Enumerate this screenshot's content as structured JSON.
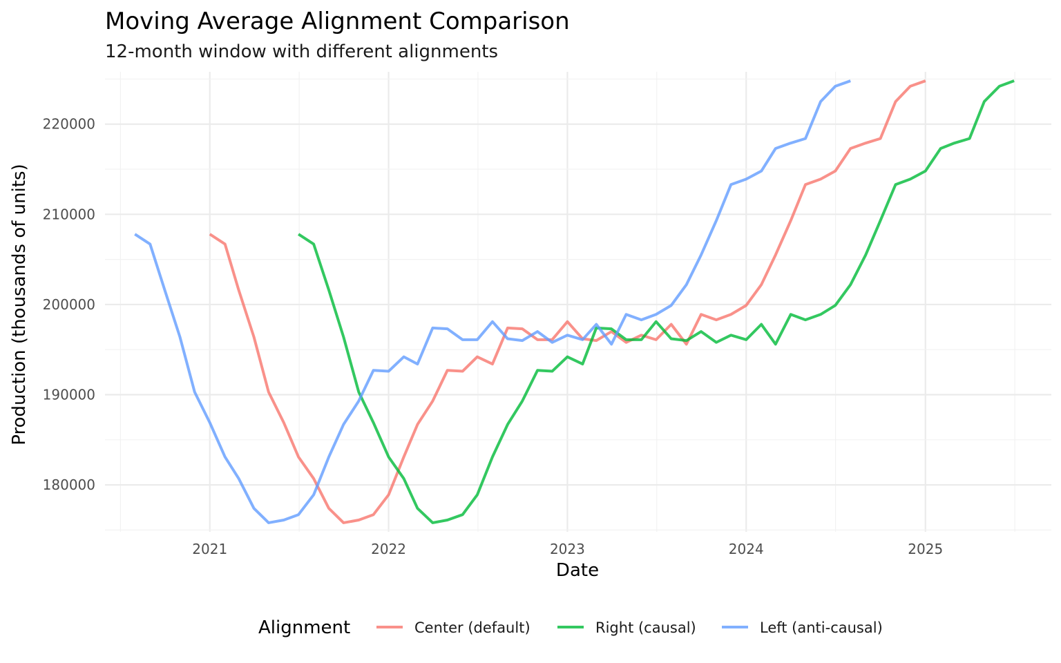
{
  "chart_data": {
    "type": "line",
    "title": "Moving Average Alignment Comparison",
    "subtitle": "12-month window with different alignments",
    "xlabel": "Date",
    "ylabel": "Production (thousands of units)",
    "xlim": [
      "2020-06-01",
      "2025-09-15"
    ],
    "ylim": [
      174800,
      225800
    ],
    "x_ticks": [
      "2021-01-01",
      "2022-01-01",
      "2023-01-01",
      "2024-01-01",
      "2025-01-01"
    ],
    "x_tick_labels": [
      "2021",
      "2022",
      "2023",
      "2024",
      "2025"
    ],
    "y_ticks": [
      180000,
      190000,
      200000,
      210000,
      220000
    ],
    "y_tick_labels": [
      "180000",
      "190000",
      "200000",
      "210000",
      "220000"
    ],
    "grid": true,
    "legend": {
      "title": "Alignment",
      "position": "bottom"
    },
    "series": [
      {
        "name": "Center (default)",
        "color": "#F8766D",
        "start": "2021-01-01",
        "values": [
          207800,
          206700,
          201600,
          196400,
          190300,
          186900,
          183100,
          180700,
          177400,
          175800,
          176100,
          176700,
          178900,
          183100,
          186700,
          189300,
          192700,
          192600,
          194200,
          193400,
          197400,
          197300,
          196100,
          196100,
          198100,
          196200,
          196000,
          197000,
          195800,
          196600,
          196100,
          197800,
          195600,
          198900,
          198300,
          198900,
          199900,
          202200,
          205500,
          209300,
          213300,
          213900,
          214800,
          217300,
          217900,
          218400,
          222500,
          224200,
          224800
        ]
      },
      {
        "name": "Right (causal)",
        "color": "#00BA38",
        "start": "2021-07-01",
        "values": [
          207800,
          206700,
          201600,
          196400,
          190300,
          186900,
          183100,
          180700,
          177400,
          175800,
          176100,
          176700,
          178900,
          183100,
          186700,
          189300,
          192700,
          192600,
          194200,
          193400,
          197400,
          197300,
          196100,
          196100,
          198100,
          196200,
          196000,
          197000,
          195800,
          196600,
          196100,
          197800,
          195600,
          198900,
          198300,
          198900,
          199900,
          202200,
          205500,
          209300,
          213300,
          213900,
          214800,
          217300,
          217900,
          218400,
          222500,
          224200,
          224800
        ]
      },
      {
        "name": "Left (anti-causal)",
        "color": "#619CFF",
        "start": "2020-08-01",
        "values": [
          207800,
          206700,
          201600,
          196400,
          190300,
          186900,
          183100,
          180700,
          177400,
          175800,
          176100,
          176700,
          178900,
          183100,
          186700,
          189300,
          192700,
          192600,
          194200,
          193400,
          197400,
          197300,
          196100,
          196100,
          198100,
          196200,
          196000,
          197000,
          195800,
          196600,
          196100,
          197800,
          195600,
          198900,
          198300,
          198900,
          199900,
          202200,
          205500,
          209300,
          213300,
          213900,
          214800,
          217300,
          217900,
          218400,
          222500,
          224200,
          224800
        ]
      }
    ]
  }
}
